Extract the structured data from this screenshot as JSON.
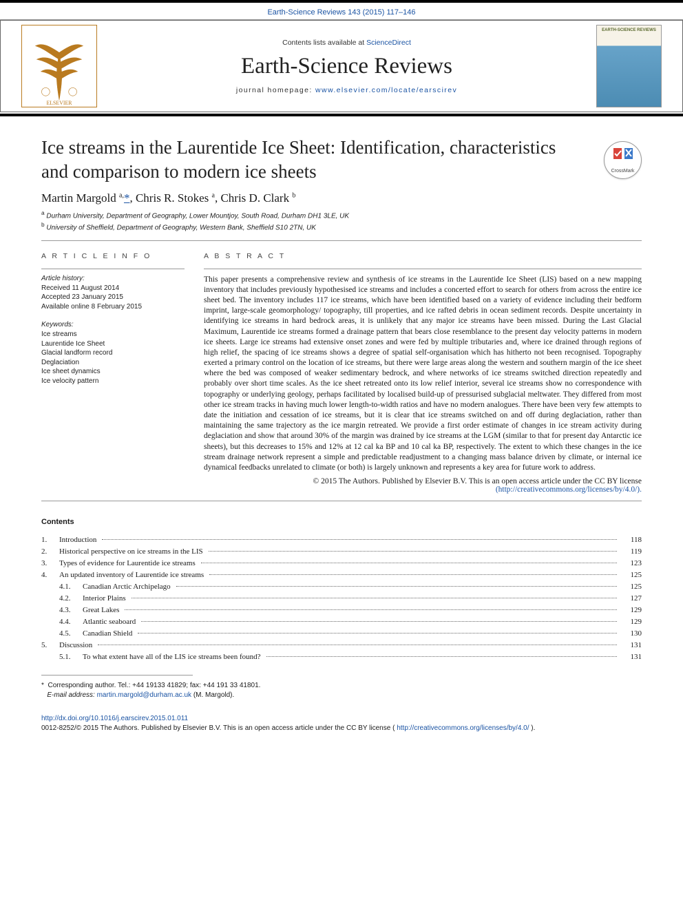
{
  "colors": {
    "link": "#1a53a3",
    "text": "#1a1a1a",
    "rule": "#000000",
    "background": "#ffffff"
  },
  "journal": {
    "ref_line": "Earth-Science Reviews 143 (2015) 117–146",
    "contents_line_pre": "Contents lists available at ",
    "contents_line_link": "ScienceDirect",
    "name": "Earth-Science Reviews",
    "homepage_pre": "journal homepage: ",
    "homepage_link": "www.elsevier.com/locate/earscirev",
    "cover_label": "EARTH-SCIENCE REVIEWS"
  },
  "crossmark": {
    "label": "CrossMark"
  },
  "article": {
    "title": "Ice streams in the Laurentide Ice Sheet: Identification, characteristics and comparison to modern ice sheets",
    "authors_html": "Martin Margold <sup>a,</sup><a class='ast' href='#'>*</a>, Chris R. Stokes <sup>a</sup>, Chris D. Clark <sup>b</sup>",
    "affiliations": [
      {
        "sup": "a",
        "text": "Durham University, Department of Geography, Lower Mountjoy, South Road, Durham DH1 3LE, UK"
      },
      {
        "sup": "b",
        "text": "University of Sheffield, Department of Geography, Western Bank, Sheffield S10 2TN, UK"
      }
    ]
  },
  "section_labels": {
    "article_info": "A R T I C L E   I N F O",
    "abstract": "A B S T R A C T"
  },
  "history": {
    "head": "Article history:",
    "lines": [
      "Received 11 August 2014",
      "Accepted 23 January 2015",
      "Available online 8 February 2015"
    ]
  },
  "keywords": {
    "head": "Keywords:",
    "items": [
      "Ice streams",
      "Laurentide Ice Sheet",
      "Glacial landform record",
      "Deglaciation",
      "Ice sheet dynamics",
      "Ice velocity pattern"
    ]
  },
  "abstract": "This paper presents a comprehensive review and synthesis of ice streams in the Laurentide Ice Sheet (LIS) based on a new mapping inventory that includes previously hypothesised ice streams and includes a concerted effort to search for others from across the entire ice sheet bed. The inventory includes 117 ice streams, which have been identified based on a variety of evidence including their bedform imprint, large-scale geomorphology/ topography, till properties, and ice rafted debris in ocean sediment records. Despite uncertainty in identifying ice streams in hard bedrock areas, it is unlikely that any major ice streams have been missed. During the Last Glacial Maximum, Laurentide ice streams formed a drainage pattern that bears close resemblance to the present day velocity patterns in modern ice sheets. Large ice streams had extensive onset zones and were fed by multiple tributaries and, where ice drained through regions of high relief, the spacing of ice streams shows a degree of spatial self-organisation which has hitherto not been recognised. Topography exerted a primary control on the location of ice streams, but there were large areas along the western and southern margin of the ice sheet where the bed was composed of weaker sedimentary bedrock, and where networks of ice streams switched direction repeatedly and probably over short time scales. As the ice sheet retreated onto its low relief interior, several ice streams show no correspondence with topography or underlying geology, perhaps facilitated by localised build-up of pressurised subglacial meltwater. They differed from most other ice stream tracks in having much lower length-to-width ratios and have no modern analogues. There have been very few attempts to date the initiation and cessation of ice streams, but it is clear that ice streams switched on and off during deglaciation, rather than maintaining the same trajectory as the ice margin retreated. We provide a first order estimate of changes in ice stream activity during deglaciation and show that around 30% of the margin was drained by ice streams at the LGM (similar to that for present day Antarctic ice sheets), but this decreases to 15% and 12% at 12 cal ka BP and 10 cal ka BP, respectively. The extent to which these changes in the ice stream drainage network represent a simple and predictable readjustment to a changing mass balance driven by climate, or internal ice dynamical feedbacks unrelated to climate (or both) is largely unknown and represents a key area for future work to address.",
  "copyright": {
    "line": "© 2015 The Authors. Published by Elsevier B.V. This is an open access article under the CC BY license",
    "link_text": "(http://creativecommons.org/licenses/by/4.0/).",
    "link_href": "http://creativecommons.org/licenses/by/4.0/"
  },
  "contents": {
    "title": "Contents",
    "rows": [
      {
        "num": "1.",
        "label": "Introduction",
        "page": "118",
        "level": 0
      },
      {
        "num": "2.",
        "label": "Historical perspective on ice streams in the LIS",
        "page": "119",
        "level": 0
      },
      {
        "num": "3.",
        "label": "Types of evidence for Laurentide ice streams",
        "page": "123",
        "level": 0
      },
      {
        "num": "4.",
        "label": "An updated inventory of Laurentide ice streams",
        "page": "125",
        "level": 0
      },
      {
        "num": "4.1.",
        "label": "Canadian Arctic Archipelago",
        "page": "125",
        "level": 1
      },
      {
        "num": "4.2.",
        "label": "Interior Plains",
        "page": "127",
        "level": 1
      },
      {
        "num": "4.3.",
        "label": "Great Lakes",
        "page": "129",
        "level": 1
      },
      {
        "num": "4.4.",
        "label": "Atlantic seaboard",
        "page": "129",
        "level": 1
      },
      {
        "num": "4.5.",
        "label": "Canadian Shield",
        "page": "130",
        "level": 1
      },
      {
        "num": "5.",
        "label": "Discussion",
        "page": "131",
        "level": 0
      },
      {
        "num": "5.1.",
        "label": "To what extent have all of the LIS ice streams been found?",
        "page": "131",
        "level": 1
      }
    ]
  },
  "corresponding": {
    "star": "*",
    "line": "Corresponding author. Tel.: +44 19133 41829; fax: +44 191 33 41801.",
    "email_label": "E-mail address: ",
    "email": "martin.margold@durham.ac.uk",
    "author": " (M. Margold)."
  },
  "doi": {
    "link": "http://dx.doi.org/10.1016/j.earscirev.2015.01.011",
    "issn_line": "0012-8252/© 2015 The Authors. Published by Elsevier B.V. This is an open access article under the CC BY license (",
    "cc_link": "http://creativecommons.org/licenses/by/4.0/",
    "close": ")."
  }
}
